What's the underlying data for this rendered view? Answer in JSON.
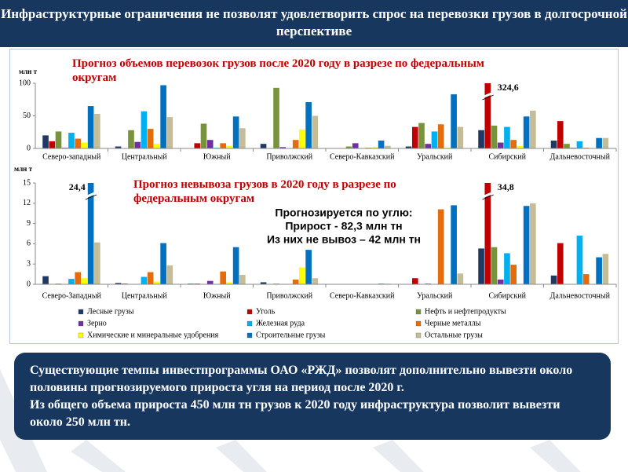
{
  "header": {
    "title": "Инфраструктурные ограничения не позволят удовлетворить спрос на перевозки грузов в долгосрочной перспективе"
  },
  "chart_data": [
    {
      "type": "bar",
      "title": "Прогноз объемов перевозок грузов после 2020 году в разрезе по федеральным округам",
      "y_label": "млн т",
      "categories": [
        "Северо-западный",
        "Центральный",
        "Южный",
        "Приволжский",
        "Северо-Кавказский",
        "Уральский",
        "Сибирский",
        "Дальневосточный"
      ],
      "ylim": [
        0,
        100
      ],
      "yticks": [
        0,
        50,
        100
      ],
      "series": [
        {
          "name": "Лесные грузы",
          "color": "#1f3864",
          "values": [
            20,
            3,
            0,
            7,
            0,
            3,
            28,
            12
          ]
        },
        {
          "name": "Уголь",
          "color": "#c00000",
          "values": [
            11,
            0,
            8,
            0,
            0,
            33,
            324.6,
            42
          ],
          "value_labels": [
            null,
            null,
            null,
            null,
            null,
            null,
            "324,6",
            null
          ]
        },
        {
          "name": "Нефть и нефтепродукты",
          "color": "#77933c",
          "values": [
            26,
            28,
            38,
            93,
            3,
            39,
            35,
            7
          ]
        },
        {
          "name": "Зерно",
          "color": "#7030a0",
          "values": [
            1,
            10,
            13,
            2,
            8,
            7,
            9,
            1
          ]
        },
        {
          "name": "Железная руда",
          "color": "#00b0f0",
          "values": [
            24,
            57,
            1,
            0,
            0,
            26,
            33,
            11
          ]
        },
        {
          "name": "Черные металлы",
          "color": "#e46c0a",
          "values": [
            15,
            30,
            8,
            13,
            1,
            37,
            13,
            1
          ]
        },
        {
          "name": "Химические и минеральные удобрения",
          "color": "#ffff00",
          "values": [
            9,
            7,
            4,
            29,
            2,
            1,
            4,
            0
          ]
        },
        {
          "name": "Строительные грузы",
          "color": "#0070c0",
          "values": [
            65,
            97,
            49,
            71,
            12,
            83,
            49,
            16
          ]
        },
        {
          "name": "Остальные грузы",
          "color": "#c4bd97",
          "values": [
            53,
            48,
            31,
            50,
            4,
            33,
            58,
            16
          ]
        }
      ]
    },
    {
      "type": "bar",
      "title": "Прогноз невывоза грузов в 2020 году в разрезе по федеральным округам",
      "y_label": "млн т",
      "annotation": [
        "Прогнозируется  по углю:",
        "Прирост  - 82,3 млн тн",
        "Из них не вывоз – 42 млн тн"
      ],
      "categories": [
        "Северо-Западный",
        "Центральный",
        "Южный",
        "Приволжский",
        "Северо-Кавказский",
        "Уральский",
        "Сибирский",
        "Дальневосточный"
      ],
      "ylim": [
        0,
        15
      ],
      "yticks": [
        0,
        3,
        6,
        9,
        12,
        15
      ],
      "series": [
        {
          "values": [
            1.2,
            0.2,
            0.1,
            0.3,
            0,
            0,
            5.3,
            1.3
          ]
        },
        {
          "values": [
            0,
            0.1,
            0.1,
            0,
            0,
            0.9,
            34.8,
            6.1
          ],
          "value_labels": [
            null,
            null,
            null,
            null,
            null,
            null,
            "34,8",
            null
          ]
        },
        {
          "values": [
            0.1,
            0,
            0,
            0.1,
            0,
            0,
            5.5,
            0
          ]
        },
        {
          "values": [
            0,
            0,
            0.5,
            0,
            0,
            0.1,
            0.7,
            0
          ]
        },
        {
          "values": [
            0.8,
            1.1,
            0,
            0,
            0,
            0,
            4.6,
            7.2
          ]
        },
        {
          "values": [
            1.8,
            1.8,
            1.9,
            0.7,
            0,
            11.1,
            2.9,
            1.5
          ]
        },
        {
          "values": [
            0.9,
            0.4,
            0.3,
            2.5,
            0,
            0,
            0,
            0
          ]
        },
        {
          "values": [
            24.4,
            6.1,
            5.5,
            5.1,
            0.1,
            11.7,
            11.6,
            4.0
          ],
          "value_labels": [
            "24,4",
            null,
            null,
            null,
            null,
            null,
            null,
            null
          ]
        },
        {
          "values": [
            6.2,
            2.8,
            1.4,
            0.9,
            0.1,
            1.6,
            12,
            4.5
          ]
        }
      ]
    }
  ],
  "callout": {
    "paragraphs": [
      "Существующие темпы инвестпрограммы ОАО «РЖД» позволят дополнительно вывезти около половины прогнозируемого прироста угля на период после 2020 г.",
      "Из общего объема прироста 450 млн тн грузов к 2020 году инфраструктура позволит вывезти около 250 млн тн."
    ]
  }
}
